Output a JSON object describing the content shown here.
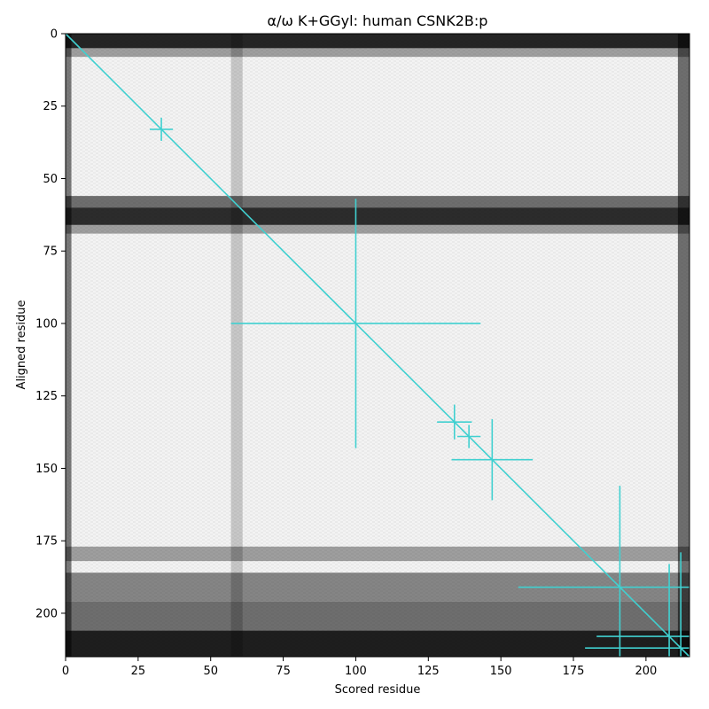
{
  "chart_data": {
    "type": "heatmap",
    "title": "α/ω K+GGyl: human CSNK2B:p",
    "xlabel": "Scored residue",
    "ylabel": "Aligned residue",
    "xlim": [
      0,
      215
    ],
    "ylim": [
      215,
      0
    ],
    "x_ticks": [
      0,
      25,
      50,
      75,
      100,
      125,
      150,
      175,
      200
    ],
    "y_ticks": [
      0,
      25,
      50,
      75,
      100,
      125,
      150,
      175,
      200
    ],
    "colormap": "grayscale (dark = high)",
    "heatmap_rows_dark": [
      {
        "from": 0,
        "to": 5,
        "intensity": 0.85
      },
      {
        "from": 5,
        "to": 8,
        "intensity": 0.35
      },
      {
        "from": 56,
        "to": 60,
        "intensity": 0.55
      },
      {
        "from": 60,
        "to": 66,
        "intensity": 0.82
      },
      {
        "from": 66,
        "to": 69,
        "intensity": 0.35
      },
      {
        "from": 177,
        "to": 182,
        "intensity": 0.35
      },
      {
        "from": 186,
        "to": 196,
        "intensity": 0.45
      },
      {
        "from": 196,
        "to": 206,
        "intensity": 0.55
      },
      {
        "from": 206,
        "to": 215,
        "intensity": 0.88
      }
    ],
    "heatmap_cols_dark": [
      {
        "from": 0,
        "to": 2,
        "intensity": 0.5
      },
      {
        "from": 57,
        "to": 61,
        "intensity": 0.18
      },
      {
        "from": 211,
        "to": 215,
        "intensity": 0.55
      }
    ],
    "diagonal": {
      "from": 0,
      "to": 215,
      "color": "#40d0d0"
    },
    "markers": [
      {
        "x": 33,
        "y": 33,
        "x_half": 4,
        "y_half": 4
      },
      {
        "x": 100,
        "y": 100,
        "x_half": 43,
        "y_half": 43
      },
      {
        "x": 134,
        "y": 134,
        "x_half": 6,
        "y_half": 6
      },
      {
        "x": 139,
        "y": 139,
        "x_half": 4,
        "y_half": 4
      },
      {
        "x": 147,
        "y": 147,
        "x_half": 14,
        "y_half": 14
      },
      {
        "x": 191,
        "y": 191,
        "x_half": 35,
        "y_half": 35
      },
      {
        "x": 208,
        "y": 208,
        "x_half": 25,
        "y_half": 25
      },
      {
        "x": 212,
        "y": 212,
        "x_half": 33,
        "y_half": 33
      }
    ],
    "marker_color": "#40d0d0"
  }
}
